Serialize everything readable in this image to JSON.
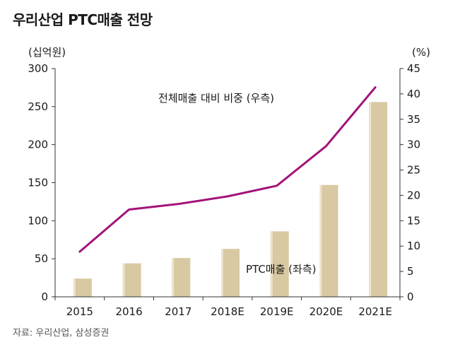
{
  "title": "우리산업 PTC매출 전망",
  "source": "자료: 우리산업, 삼성증권",
  "chart_data": {
    "type": "bar",
    "categories": [
      "2015",
      "2016",
      "2017",
      "2018E",
      "2019E",
      "2020E",
      "2021E"
    ],
    "series": [
      {
        "name": "PTC매출 (좌측)",
        "type": "bar",
        "axis": "left",
        "values": [
          24,
          44,
          51,
          63,
          86,
          147,
          256
        ]
      },
      {
        "name": "전체매출 대비 비중 (우측)",
        "type": "line",
        "axis": "right",
        "values": [
          8.9,
          17.2,
          18.3,
          19.8,
          21.9,
          29.7,
          41.3
        ]
      }
    ],
    "y_left": {
      "label": "(십억원)",
      "ylim": [
        0,
        300
      ],
      "ticks": [
        0,
        50,
        100,
        150,
        200,
        250,
        300
      ]
    },
    "y_right": {
      "label": "(%)",
      "ylim": [
        0,
        45
      ],
      "ticks": [
        0,
        5,
        10,
        15,
        20,
        25,
        30,
        35,
        40,
        45
      ]
    },
    "colors": {
      "bar": "#d8c9a3",
      "bar_shadow": "#ece3cc",
      "line": "#a3137a",
      "axis": "#333333"
    },
    "grid": false
  }
}
